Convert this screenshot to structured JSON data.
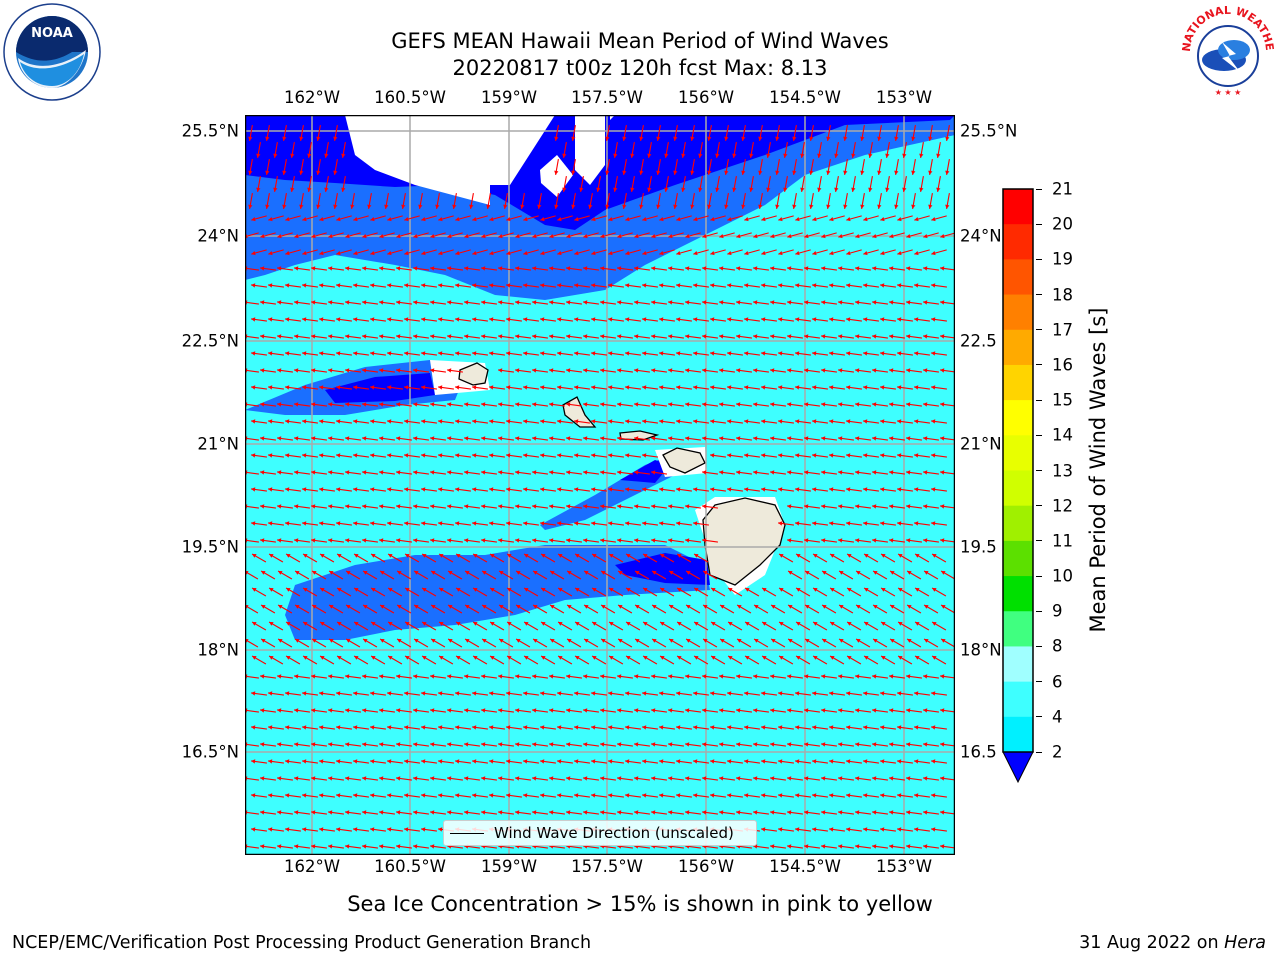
{
  "title_line1": "GEFS MEAN Hawaii Mean Period of Wind Waves",
  "title_line2": "20220817 t00z 120h fcst   Max: 8.13",
  "map": {
    "lon_ticks": [
      "162°W",
      "160.5°W",
      "159°W",
      "157.5°W",
      "156°W",
      "154.5°W",
      "153°W"
    ],
    "lat_ticks": [
      "25.5°N",
      "24°N",
      "22.5°N",
      "21°N",
      "19.5°N",
      "18°N",
      "16.5°N"
    ],
    "lat_ticks_right": [
      "25.5°N",
      "24°N",
      "22.5",
      "21°N",
      "19.5",
      "18°N",
      "16.5"
    ],
    "ocean_color": "#3effff",
    "band_color_2_4": "#1a6fff",
    "band_color_low": "#0000ff",
    "land_color": "#eeeadb",
    "arrow_color": "#ff0000",
    "dominant_direction": "toward west-southwest"
  },
  "legend": {
    "label": "Wind Wave Direction (unscaled)"
  },
  "colorbar": {
    "label": "Mean Period of Wind Waves [s]",
    "ticks": [
      "21",
      "20",
      "19",
      "18",
      "17",
      "16",
      "15",
      "14",
      "13",
      "12",
      "11",
      "10",
      "9",
      "8",
      "6",
      "4",
      "2"
    ],
    "colors": [
      "#ff0000",
      "#ff2a00",
      "#ff5500",
      "#ff8000",
      "#ffaa00",
      "#ffd400",
      "#ffff00",
      "#e8ff00",
      "#d0ff00",
      "#a0f000",
      "#5ce000",
      "#00e000",
      "#40ff80",
      "#a0ffff",
      "#3effff",
      "#00f0ff",
      "#1a6fff"
    ],
    "extend_color": "#0000ff"
  },
  "subnote": "Sea Ice Concentration > 15% is shown in pink to yellow",
  "footer": {
    "left": "NCEP/EMC/Verification Post Processing Product Generation Branch",
    "right_date": "31 Aug 2022 on ",
    "right_machine": "Hera"
  },
  "logos": {
    "left": "NOAA",
    "right": "NATIONAL WEATHER SERVICE"
  }
}
